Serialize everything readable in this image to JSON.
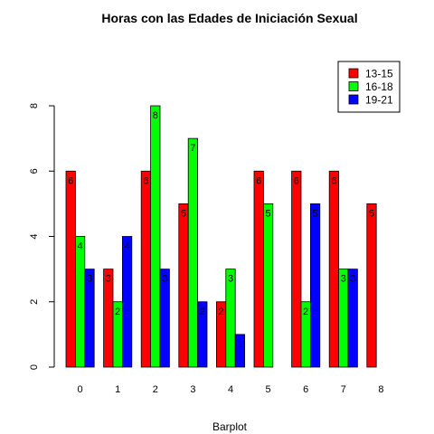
{
  "chart_data": {
    "type": "bar",
    "title": "Horas con las Edades de Iniciación Sexual",
    "xlabel": "Barplot",
    "ylabel": "",
    "categories": [
      "0",
      "1",
      "2",
      "3",
      "4",
      "5",
      "6",
      "7",
      "8"
    ],
    "series": [
      {
        "name": "13-15",
        "color": "#ff0000",
        "values": [
          6,
          3,
          6,
          5,
          2,
          6,
          6,
          6,
          5
        ]
      },
      {
        "name": "16-18",
        "color": "#00ff00",
        "values": [
          4,
          2,
          8,
          7,
          3,
          5,
          2,
          3,
          0
        ]
      },
      {
        "name": "19-21",
        "color": "#0000ff",
        "values": [
          3,
          4,
          3,
          2,
          1,
          0,
          5,
          3,
          0
        ]
      }
    ],
    "ylim": [
      0,
      8
    ],
    "yticks": [
      0,
      2,
      4,
      6,
      8
    ],
    "grid": false,
    "legend_position": "top-right",
    "data_labels": true
  }
}
